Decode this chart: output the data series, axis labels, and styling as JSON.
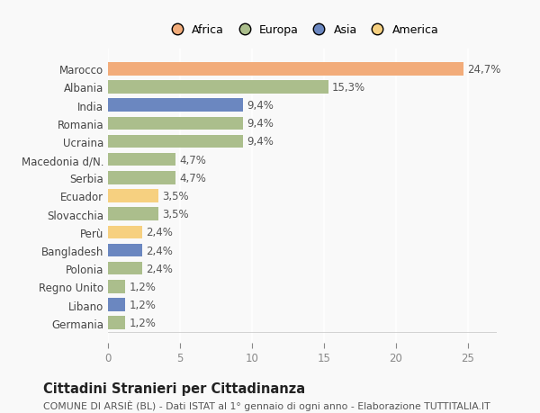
{
  "categories": [
    "Marocco",
    "Albania",
    "India",
    "Romania",
    "Ucraina",
    "Macedonia d/N.",
    "Serbia",
    "Ecuador",
    "Slovacchia",
    "Perù",
    "Bangladesh",
    "Polonia",
    "Regno Unito",
    "Libano",
    "Germania"
  ],
  "values": [
    24.7,
    15.3,
    9.4,
    9.4,
    9.4,
    4.7,
    4.7,
    3.5,
    3.5,
    2.4,
    2.4,
    2.4,
    1.2,
    1.2,
    1.2
  ],
  "labels": [
    "24,7%",
    "15,3%",
    "9,4%",
    "9,4%",
    "9,4%",
    "4,7%",
    "4,7%",
    "3,5%",
    "3,5%",
    "2,4%",
    "2,4%",
    "2,4%",
    "1,2%",
    "1,2%",
    "1,2%"
  ],
  "colors": [
    "#F2AC7A",
    "#ABBE8C",
    "#6B87C0",
    "#ABBE8C",
    "#ABBE8C",
    "#ABBE8C",
    "#ABBE8C",
    "#F6D080",
    "#ABBE8C",
    "#F6D080",
    "#6B87C0",
    "#ABBE8C",
    "#ABBE8C",
    "#6B87C0",
    "#ABBE8C"
  ],
  "continent_colors": {
    "Africa": "#F2AC7A",
    "Europa": "#ABBE8C",
    "Asia": "#6B87C0",
    "America": "#F6D080"
  },
  "xlim": [
    0,
    27
  ],
  "xticks": [
    0,
    5,
    10,
    15,
    20,
    25
  ],
  "title": "Cittadini Stranieri per Cittadinanza",
  "subtitle": "COMUNE DI ARSIÈ (BL) - Dati ISTAT al 1° gennaio di ogni anno - Elaborazione TUTTITALIA.IT",
  "bg_color": "#f9f9f9",
  "bar_height": 0.72,
  "label_fontsize": 8.5,
  "tick_fontsize": 8.5,
  "title_fontsize": 10.5,
  "subtitle_fontsize": 7.8
}
